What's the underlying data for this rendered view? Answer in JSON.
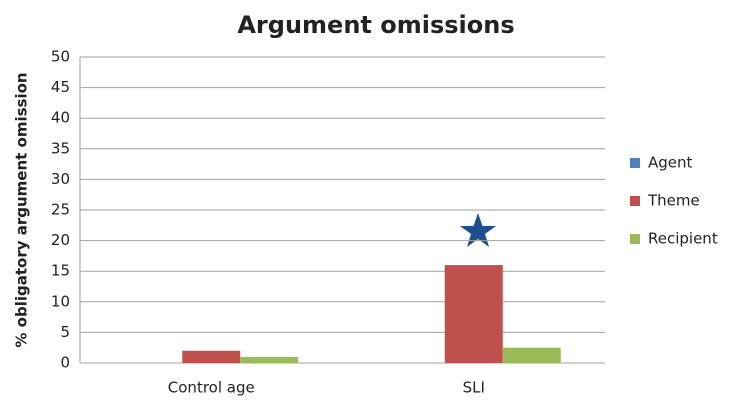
{
  "chart_data": {
    "type": "bar",
    "title": "Argument omissions",
    "y_label": "% obligatory argument omission",
    "categories": [
      "Control age",
      "SLI"
    ],
    "series": [
      {
        "name": "Agent",
        "color": "#4f81bd",
        "values": [
          0,
          0
        ]
      },
      {
        "name": "Theme",
        "color": "#c0504d",
        "values": [
          2,
          16
        ]
      },
      {
        "name": "Recipient",
        "color": "#9bbb59",
        "values": [
          1,
          2.5
        ]
      }
    ],
    "ylim": [
      0,
      50
    ],
    "yticks": [
      0,
      5,
      10,
      15,
      20,
      25,
      30,
      35,
      40,
      45,
      50
    ],
    "grid": true,
    "legend": "right"
  }
}
